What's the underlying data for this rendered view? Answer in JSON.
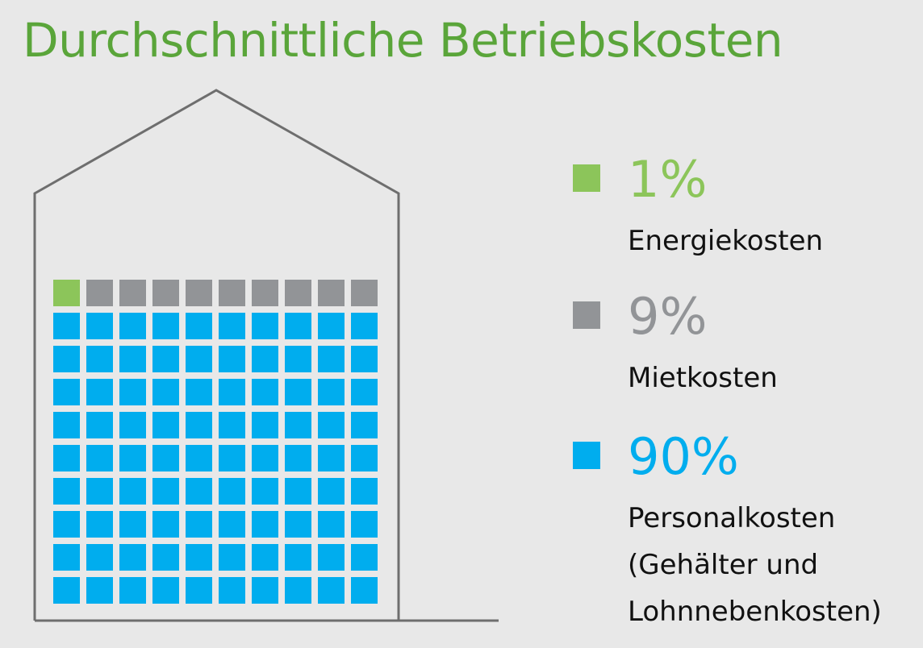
{
  "title": "Durchschnittliche Betriebskosten",
  "colors": {
    "title": "#5aa53a",
    "energy": "#8cc55a",
    "rent": "#929497",
    "personnel": "#00adee",
    "outline": "#6e6e6e",
    "background": "#e8e8e8"
  },
  "chart_data": {
    "type": "waffle",
    "grid": {
      "rows": 10,
      "cols": 10,
      "total": 100
    },
    "series": [
      {
        "name": "Energiekosten",
        "value": 1,
        "color": "#8cc55a"
      },
      {
        "name": "Mietkosten",
        "value": 9,
        "color": "#929497"
      },
      {
        "name": "Personalkosten (Gehälter und Lohnnebenkosten)",
        "value": 90,
        "color": "#00adee"
      }
    ]
  },
  "legend": [
    {
      "percent": "1%",
      "label_lines": [
        "Energiekosten"
      ],
      "color": "#8cc55a",
      "icon": "square-icon"
    },
    {
      "percent": "9%",
      "label_lines": [
        "Mietkosten"
      ],
      "color": "#929497",
      "icon": "square-icon"
    },
    {
      "percent": "90%",
      "label_lines": [
        "Personalkosten",
        "(Gehälter und",
        "Lohnnebenkosten)"
      ],
      "color": "#00adee",
      "icon": "square-icon"
    }
  ]
}
